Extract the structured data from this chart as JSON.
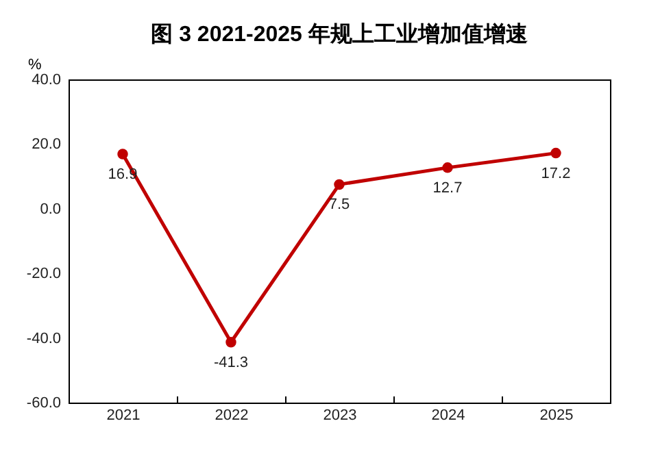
{
  "chart_data": {
    "type": "line",
    "title": "图 3 2021-2025 年规上工业增加值增速",
    "ylabel": "%",
    "categories": [
      "2021",
      "2022",
      "2023",
      "2024",
      "2025"
    ],
    "series": [
      {
        "color": "#c00000",
        "values": [
          16.9,
          -41.3,
          7.5,
          12.7,
          17.2
        ]
      }
    ],
    "ylim": [
      -60,
      40
    ],
    "yticks": [
      {
        "value": -60,
        "label": "-60.0"
      },
      {
        "value": -40,
        "label": "-40.0"
      },
      {
        "value": -20,
        "label": "-20.0"
      },
      {
        "value": 0,
        "label": "0.0"
      },
      {
        "value": 20,
        "label": "20.0"
      },
      {
        "value": 40,
        "label": "40.0"
      }
    ],
    "data_labels": true,
    "marker": "circle",
    "grid": false,
    "legend": false
  }
}
